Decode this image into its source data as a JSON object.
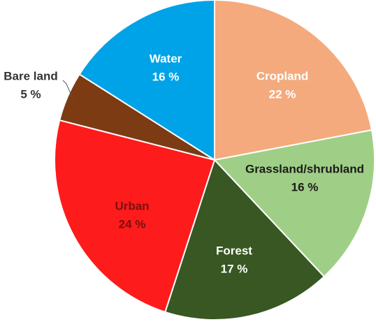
{
  "chart_data": {
    "type": "pie",
    "categories": [
      "Cropland",
      "Grassland/shrubland",
      "Forest",
      "Urban",
      "Bare land",
      "Water"
    ],
    "values": [
      22,
      16,
      17,
      24,
      5,
      16
    ],
    "value_labels": [
      "22 %",
      "16 %",
      "17 %",
      "24 %",
      "5 %",
      "16 %"
    ],
    "colors": [
      "#f4aa7c",
      "#9fcf86",
      "#385723",
      "#fe1b1b",
      "#7c3b13",
      "#00a3e8"
    ]
  }
}
